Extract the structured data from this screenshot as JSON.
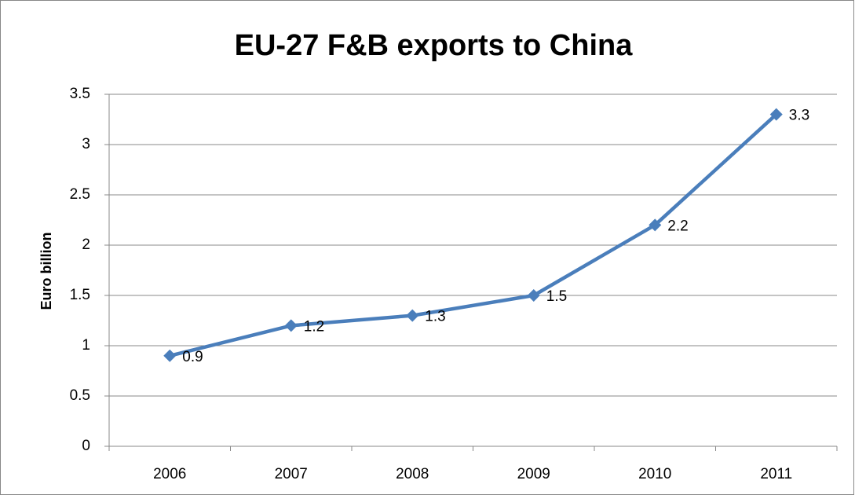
{
  "chart_data": {
    "type": "line",
    "title": "EU-27 F&B exports to China",
    "y_label": "Euro billion",
    "categories": [
      "2006",
      "2007",
      "2008",
      "2009",
      "2010",
      "2011"
    ],
    "values": [
      0.9,
      1.2,
      1.3,
      1.5,
      2.2,
      3.3
    ],
    "color": "#4a7ebb",
    "ylim": [
      0,
      3.5
    ],
    "yticks": [
      0,
      0.5,
      1,
      1.5,
      2,
      2.5,
      3,
      3.5
    ],
    "grid": true
  }
}
